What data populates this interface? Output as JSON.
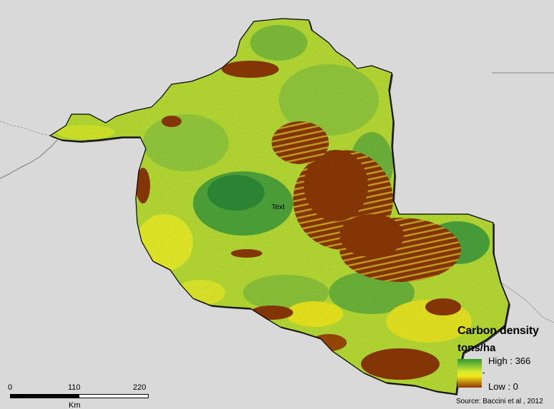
{
  "map": {
    "placeholder_label": "Text",
    "colors": {
      "background": "#d9d9d9",
      "outline": "#000000",
      "high": "#2e9a2a",
      "mid_green": "#8cc638",
      "yellow_green": "#d6ec2a",
      "yellow": "#f0e81c",
      "low": "#8a3806"
    }
  },
  "legend": {
    "title": "Carbon density",
    "subtitle": "tons/ha",
    "high_label": "High : 366",
    "low_label": "Low : 0",
    "source": "Source: Baccini et al , 2012",
    "value_range": [
      0,
      366
    ]
  },
  "scalebar": {
    "ticks": [
      "0",
      "110",
      "220"
    ],
    "unit": "Km"
  }
}
